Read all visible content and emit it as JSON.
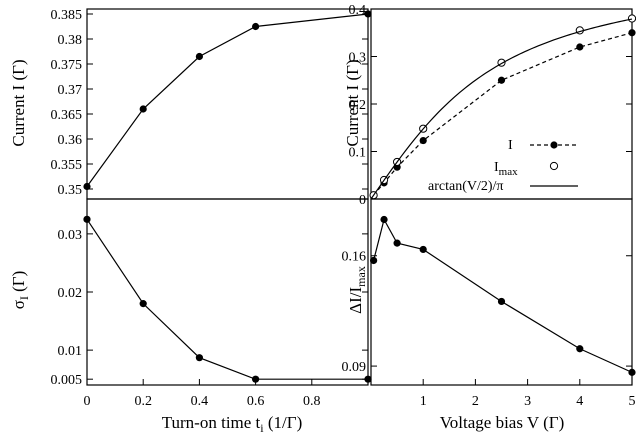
{
  "chart_data": [
    {
      "type": "line",
      "xlabel": "",
      "ylabel": "Current I (Γ)",
      "xlim": [
        0,
        1.0
      ],
      "ylim": [
        0.348,
        0.386
      ],
      "yticks": [
        "0.35",
        "0.355",
        "0.36",
        "0.365",
        "0.37",
        "0.375",
        "0.38",
        "0.385"
      ],
      "series": [
        {
          "x": [
            0,
            0.2,
            0.4,
            0.6,
            1.0
          ],
          "y": [
            0.3505,
            0.366,
            0.3765,
            0.3825,
            0.385
          ]
        }
      ]
    },
    {
      "type": "line",
      "xlabel": "Turn-on time t_i (1/Γ)",
      "ylabel": "σ_I (Γ)",
      "xlim": [
        0,
        1.0
      ],
      "ylim": [
        0.004,
        0.036
      ],
      "xticks": [
        "0",
        "0.2",
        "0.4",
        "0.6",
        "0.8"
      ],
      "yticks": [
        "0.005",
        "0.01",
        "0.02",
        "0.03"
      ],
      "series": [
        {
          "x": [
            0,
            0.2,
            0.4,
            0.6,
            1.0
          ],
          "y": [
            0.0325,
            0.018,
            0.0087,
            0.005,
            0.005
          ]
        }
      ]
    },
    {
      "type": "line",
      "xlabel": "",
      "ylabel": "Current I (Γ)",
      "xlim": [
        0,
        5
      ],
      "ylim": [
        0,
        0.4
      ],
      "yticks": [
        "0",
        "0.1",
        "0.2",
        "0.3",
        "0.4"
      ],
      "legend": "bottom-right",
      "legend_entries": [
        "I",
        "I_max",
        "arctan(V/2)/π"
      ],
      "series": [
        {
          "label": "I",
          "style": "dashed",
          "marker": "filled",
          "x": [
            0.05,
            0.25,
            0.5,
            1,
            2.5,
            4,
            5
          ],
          "y": [
            0.008,
            0.034,
            0.067,
            0.123,
            0.25,
            0.32,
            0.35
          ]
        },
        {
          "label": "I_max",
          "style": "none",
          "marker": "open",
          "x": [
            0.05,
            0.25,
            0.5,
            1,
            2.5,
            4,
            5
          ],
          "y": [
            0.008,
            0.04,
            0.078,
            0.148,
            0.287,
            0.355,
            0.38
          ]
        },
        {
          "label": "arctan(V/2)/π",
          "style": "solid",
          "marker": "none",
          "function": "arctan(V/2)/pi"
        }
      ]
    },
    {
      "type": "line",
      "xlabel": "Voltage bias V (Γ)",
      "ylabel": "ΔI/I_max",
      "xlim": [
        0,
        5
      ],
      "ylim": [
        0.078,
        0.196
      ],
      "xticks": [
        "1",
        "2",
        "3",
        "4",
        "5"
      ],
      "yticks": [
        "0.09",
        "0.16"
      ],
      "series": [
        {
          "x": [
            0.05,
            0.25,
            0.5,
            1,
            2.5,
            4,
            5
          ],
          "y": [
            0.157,
            0.183,
            0.168,
            0.164,
            0.131,
            0.101,
            0.086
          ]
        }
      ]
    }
  ]
}
